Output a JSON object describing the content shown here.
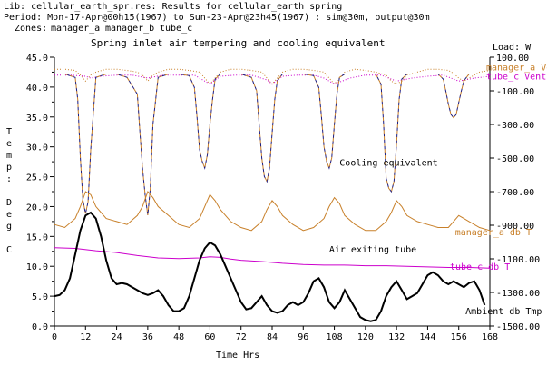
{
  "header": {
    "lib_line": "Lib: cellular_earth_spr.res: Results for cellular_earth spring",
    "period_line": "Period: Mon-17-Apr@00h15(1967) to Sun-23-Apr@23h45(1967) : sim@30m, output@30m",
    "zones_label": "Zones:",
    "zones": [
      {
        "name": "manager_a",
        "color": "#000000"
      },
      {
        "name": "manager_b",
        "color": "#c8802a"
      },
      {
        "name": "tube_c",
        "color": "#cc00cc"
      }
    ]
  },
  "chart_data": {
    "type": "line",
    "title": "Spring inlet air tempering and cooling equivalent",
    "xlabel": "Time Hrs",
    "ylabel": "Temp: Deg C",
    "y2label": "Load: W",
    "xlim": [
      0,
      168
    ],
    "ylim": [
      0,
      45
    ],
    "y2lim": [
      -1500,
      100
    ],
    "x_ticks": [
      0,
      12,
      24,
      36,
      48,
      60,
      72,
      84,
      96,
      108,
      120,
      132,
      144,
      156,
      168
    ],
    "y_ticks": [
      "0.0",
      "2.5",
      "5.0",
      "7.5",
      "10.0",
      "12.5",
      "15.0",
      "17.5",
      "20.0",
      "22.5",
      "25.0",
      "27.5",
      "30.0",
      "32.5",
      "35.0",
      "37.5",
      "40.0",
      "42.5",
      "45.0"
    ],
    "y2_ticks": [
      "100.00",
      "-100.00",
      "-300.00",
      "-500.00",
      "-700.00",
      "-900.00",
      "-1100.00",
      "-1300.00",
      "-1500.00"
    ],
    "annotations": [
      {
        "text": "Cooling equivalent",
        "x": 110,
        "y": 26.8
      },
      {
        "text": "Air exiting tube",
        "x": 106,
        "y": 12.3
      }
    ],
    "colors": {
      "manager_a_vent": "#c8802a",
      "tube_c_vent": "#cc00cc",
      "cooling": "#1a1a80",
      "manager_a_dbt": "#c8802a",
      "tube_c_dbt": "#cc00cc",
      "ambient": "#000000"
    },
    "series": [
      {
        "name": "manager_a Vent",
        "axis": "y",
        "style": "dotted",
        "x": [
          0,
          4,
          8,
          10,
          12,
          14,
          16,
          20,
          24,
          28,
          32,
          34,
          36,
          38,
          40,
          44,
          48,
          52,
          56,
          58,
          60,
          62,
          64,
          68,
          72,
          76,
          80,
          82,
          84,
          86,
          88,
          92,
          96,
          100,
          104,
          106,
          108,
          110,
          112,
          116,
          120,
          124,
          128,
          130,
          132,
          134,
          136,
          140,
          144,
          148,
          152,
          154,
          156,
          158,
          160,
          164,
          168
        ],
        "y": [
          43,
          43,
          42.8,
          42,
          41,
          42,
          42.5,
          43,
          43,
          42.8,
          42.5,
          42,
          41,
          42,
          42.5,
          43,
          43,
          42.8,
          42.5,
          41.5,
          40.5,
          41.5,
          42.5,
          43,
          43,
          42.8,
          42.5,
          41.5,
          40.5,
          41.5,
          42.5,
          43,
          43,
          42.8,
          42.5,
          41.5,
          40.5,
          41.5,
          42.5,
          43,
          42.8,
          42.5,
          42,
          41,
          40.5,
          41,
          42,
          42.5,
          43,
          43,
          42.8,
          42.3,
          41.5,
          41,
          41.5,
          42.5,
          42.8
        ]
      },
      {
        "name": "tube_c Vent",
        "axis": "y",
        "style": "dotted",
        "x": [
          0,
          6,
          12,
          14,
          18,
          24,
          30,
          36,
          42,
          48,
          54,
          58,
          60,
          64,
          70,
          76,
          82,
          84,
          88,
          94,
          100,
          104,
          108,
          114,
          120,
          126,
          132,
          138,
          144,
          150,
          156,
          162,
          168
        ],
        "y": [
          42,
          42,
          41.8,
          41.5,
          41.8,
          42,
          42,
          41.5,
          42,
          42,
          42,
          41,
          40.5,
          41.8,
          42,
          42,
          41.2,
          40.5,
          41.8,
          42,
          42,
          41.5,
          40.5,
          41.5,
          42,
          42,
          41,
          41.5,
          41.8,
          42,
          41,
          41.5,
          41.8
        ]
      },
      {
        "name": "Cooling equivalent",
        "axis": "y2",
        "style": "dashed",
        "x": [
          0,
          4,
          8,
          9,
          10,
          11,
          12,
          13,
          14,
          16,
          20,
          24,
          28,
          32,
          33,
          34,
          35,
          36,
          37,
          38,
          40,
          44,
          48,
          52,
          54,
          55,
          56,
          57,
          58,
          59,
          60,
          61,
          62,
          64,
          68,
          72,
          76,
          78,
          79,
          80,
          81,
          82,
          83,
          84,
          85,
          86,
          88,
          92,
          96,
          100,
          102,
          103,
          104,
          105,
          106,
          107,
          108,
          109,
          110,
          112,
          116,
          120,
          124,
          126,
          127,
          128,
          129,
          130,
          131,
          132,
          133,
          134,
          136,
          140,
          144,
          148,
          150,
          151,
          152,
          153,
          154,
          155,
          156,
          157,
          158,
          160,
          164,
          168
        ],
        "y": [
          0,
          0,
          -20,
          -150,
          -500,
          -750,
          -830,
          -760,
          -450,
          -20,
          0,
          0,
          -20,
          -120,
          -350,
          -560,
          -720,
          -840,
          -680,
          -300,
          -20,
          0,
          0,
          -10,
          -80,
          -250,
          -450,
          -520,
          -560,
          -480,
          -300,
          -150,
          -30,
          0,
          0,
          0,
          -20,
          -100,
          -300,
          -500,
          -610,
          -640,
          -560,
          -350,
          -150,
          -40,
          0,
          0,
          0,
          -10,
          -80,
          -250,
          -430,
          -520,
          -560,
          -500,
          -300,
          -120,
          -20,
          0,
          0,
          0,
          0,
          -60,
          -300,
          -620,
          -680,
          -700,
          -640,
          -420,
          -150,
          -30,
          0,
          0,
          0,
          0,
          -30,
          -100,
          -180,
          -240,
          -260,
          -240,
          -170,
          -100,
          -40,
          0,
          0,
          0
        ]
      },
      {
        "name": "manager_a db T",
        "axis": "y",
        "style": "solid",
        "x": [
          0,
          4,
          8,
          10,
          12,
          14,
          16,
          18,
          20,
          24,
          28,
          32,
          34,
          36,
          38,
          40,
          44,
          48,
          52,
          56,
          58,
          60,
          62,
          64,
          66,
          68,
          72,
          76,
          80,
          82,
          84,
          86,
          88,
          92,
          96,
          100,
          104,
          106,
          108,
          110,
          112,
          116,
          120,
          124,
          128,
          130,
          132,
          134,
          136,
          140,
          144,
          148,
          152,
          154,
          156,
          158,
          160,
          164,
          168
        ],
        "y": [
          17,
          16.5,
          18,
          20,
          22.5,
          22,
          20,
          19,
          18,
          17.5,
          17,
          18.5,
          20,
          22.5,
          21.5,
          20,
          18.5,
          17,
          16.5,
          18,
          20,
          22,
          21,
          19.5,
          18.5,
          17.5,
          16.5,
          16,
          17.5,
          19.5,
          21,
          20,
          18.5,
          17,
          16,
          16.5,
          18,
          20,
          21.5,
          20.5,
          18.5,
          17,
          16,
          16,
          17.5,
          19,
          21,
          20,
          18.5,
          17.5,
          17,
          16.5,
          16.5,
          17.5,
          18.5,
          18,
          17.5,
          16.5,
          16
        ]
      },
      {
        "name": "tube_c db T",
        "axis": "y",
        "style": "solid",
        "x": [
          0,
          8,
          16,
          24,
          32,
          40,
          48,
          56,
          60,
          64,
          68,
          72,
          80,
          88,
          96,
          104,
          112,
          120,
          128,
          136,
          144,
          152,
          160,
          168
        ],
        "y": [
          13.1,
          13,
          12.6,
          12.3,
          11.8,
          11.4,
          11.3,
          11.4,
          11.6,
          11.5,
          11.2,
          11.0,
          10.8,
          10.5,
          10.3,
          10.2,
          10.2,
          10.1,
          10.1,
          10.0,
          9.9,
          9.8,
          9.8,
          9.7
        ]
      },
      {
        "name": "Ambient db Tmp",
        "axis": "y",
        "style": "solid",
        "x": [
          0,
          2,
          4,
          6,
          8,
          10,
          12,
          14,
          16,
          18,
          20,
          22,
          24,
          26,
          28,
          30,
          32,
          34,
          36,
          38,
          40,
          42,
          44,
          46,
          48,
          50,
          52,
          54,
          56,
          58,
          60,
          62,
          64,
          66,
          68,
          70,
          72,
          74,
          76,
          78,
          80,
          82,
          84,
          86,
          88,
          90,
          92,
          94,
          96,
          98,
          100,
          102,
          104,
          106,
          108,
          110,
          112,
          114,
          116,
          118,
          120,
          122,
          124,
          126,
          128,
          130,
          132,
          134,
          136,
          138,
          140,
          142,
          144,
          146,
          148,
          150,
          152,
          154,
          156,
          158,
          160,
          162,
          164,
          166
        ],
        "y": [
          5,
          5.2,
          6,
          8,
          12,
          16,
          18.5,
          19,
          18,
          15,
          11,
          8,
          7,
          7.2,
          7,
          6.5,
          6,
          5.5,
          5.2,
          5.5,
          6,
          5,
          3.5,
          2.5,
          2.5,
          3,
          5,
          8,
          11,
          13,
          14,
          13.5,
          12,
          10,
          8,
          6,
          4,
          2.8,
          3,
          4,
          5,
          3.5,
          2.5,
          2.2,
          2.5,
          3.5,
          4,
          3.5,
          4,
          5.5,
          7.5,
          8,
          6.5,
          4,
          3,
          4,
          6,
          4.5,
          3,
          1.5,
          1,
          0.8,
          1,
          2.5,
          5,
          6.5,
          7.5,
          6,
          4.5,
          5,
          5.5,
          7,
          8.5,
          9,
          8.5,
          7.5,
          7,
          7.5,
          7,
          6.5,
          7.2,
          7.5,
          6,
          3.5
        ]
      }
    ],
    "series_labels": [
      {
        "text": "manager_a Vent",
        "color": "#c8802a",
        "x": 168,
        "y": 43.4
      },
      {
        "text": "tube_c Vent",
        "color": "#cc00cc",
        "x": 168,
        "y": 41.9
      },
      {
        "text": "manager_a db T",
        "color": "#c8802a",
        "x": 156,
        "y": 15.8
      },
      {
        "text": "tube_c db T",
        "color": "#cc00cc",
        "x": 154,
        "y": 10.0
      },
      {
        "text": "Ambient db Tmp",
        "color": "#000000",
        "x": 160,
        "y": 2.6
      }
    ]
  }
}
